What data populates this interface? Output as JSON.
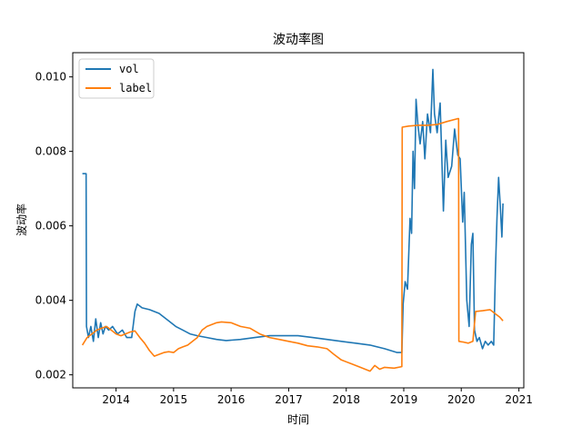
{
  "chart_data": {
    "type": "line",
    "title": "波动率图",
    "xlabel": "时间",
    "ylabel": "波动率",
    "xlim": [
      "2013-04-01",
      "2021-02-01"
    ],
    "ylim": [
      0.00165,
      0.01065
    ],
    "x_ticks": [
      "2014",
      "2015",
      "2016",
      "2017",
      "2018",
      "2019",
      "2020",
      "2021"
    ],
    "x_tick_dates": [
      "2014-01-01",
      "2015-01-01",
      "2016-01-01",
      "2017-01-01",
      "2018-01-01",
      "2019-01-01",
      "2020-01-01",
      "2021-01-01"
    ],
    "y_ticks": [
      "0.002",
      "0.004",
      "0.006",
      "0.008",
      "0.010"
    ],
    "y_tick_values": [
      0.002,
      0.004,
      0.006,
      0.008,
      0.01
    ],
    "grid": false,
    "legend_position": "top-left",
    "series": [
      {
        "name": "vol",
        "color": "#1f77b4",
        "points": [
          [
            "2013-06-01",
            0.0074
          ],
          [
            "2013-06-25",
            0.0074
          ],
          [
            "2013-06-27",
            0.0033
          ],
          [
            "2013-07-10",
            0.003
          ],
          [
            "2013-07-25",
            0.0033
          ],
          [
            "2013-08-10",
            0.0029
          ],
          [
            "2013-08-25",
            0.0035
          ],
          [
            "2013-09-10",
            0.003
          ],
          [
            "2013-09-25",
            0.0034
          ],
          [
            "2013-10-10",
            0.0031
          ],
          [
            "2013-10-25",
            0.0033
          ],
          [
            "2013-11-15",
            0.0032
          ],
          [
            "2013-12-10",
            0.0033
          ],
          [
            "2014-01-10",
            0.0031
          ],
          [
            "2014-02-10",
            0.0032
          ],
          [
            "2014-03-10",
            0.003
          ],
          [
            "2014-04-10",
            0.003
          ],
          [
            "2014-05-01",
            0.0037
          ],
          [
            "2014-05-15",
            0.0039
          ],
          [
            "2014-06-15",
            0.0038
          ],
          [
            "2014-08-01",
            0.00375
          ],
          [
            "2014-10-01",
            0.00365
          ],
          [
            "2014-12-01",
            0.00345
          ],
          [
            "2015-01-15",
            0.0033
          ],
          [
            "2015-03-01",
            0.0032
          ],
          [
            "2015-04-15",
            0.0031
          ],
          [
            "2015-06-01",
            0.00305
          ],
          [
            "2015-08-01",
            0.003
          ],
          [
            "2015-10-01",
            0.00295
          ],
          [
            "2015-12-01",
            0.00292
          ],
          [
            "2016-03-01",
            0.00295
          ],
          [
            "2016-06-01",
            0.003
          ],
          [
            "2016-09-01",
            0.00305
          ],
          [
            "2016-12-01",
            0.00305
          ],
          [
            "2017-03-01",
            0.00305
          ],
          [
            "2017-06-01",
            0.003
          ],
          [
            "2017-09-01",
            0.00295
          ],
          [
            "2017-12-01",
            0.0029
          ],
          [
            "2018-03-01",
            0.00285
          ],
          [
            "2018-06-01",
            0.0028
          ],
          [
            "2018-09-01",
            0.0027
          ],
          [
            "2018-11-20",
            0.0026
          ],
          [
            "2018-12-20",
            0.0026
          ],
          [
            "2018-12-28",
            0.0039
          ],
          [
            "2019-01-10",
            0.0045
          ],
          [
            "2019-01-25",
            0.0043
          ],
          [
            "2019-02-10",
            0.0062
          ],
          [
            "2019-02-20",
            0.0058
          ],
          [
            "2019-03-01",
            0.008
          ],
          [
            "2019-03-10",
            0.007
          ],
          [
            "2019-03-20",
            0.0094
          ],
          [
            "2019-04-01",
            0.0087
          ],
          [
            "2019-04-15",
            0.0082
          ],
          [
            "2019-05-01",
            0.0088
          ],
          [
            "2019-05-15",
            0.0078
          ],
          [
            "2019-06-01",
            0.009
          ],
          [
            "2019-06-20",
            0.0085
          ],
          [
            "2019-07-05",
            0.0102
          ],
          [
            "2019-07-15",
            0.009
          ],
          [
            "2019-08-01",
            0.0085
          ],
          [
            "2019-08-20",
            0.0093
          ],
          [
            "2019-09-10",
            0.0064
          ],
          [
            "2019-09-25",
            0.0083
          ],
          [
            "2019-10-10",
            0.0073
          ],
          [
            "2019-11-01",
            0.0076
          ],
          [
            "2019-11-20",
            0.0086
          ],
          [
            "2019-12-10",
            0.0079
          ],
          [
            "2019-12-25",
            0.0078
          ],
          [
            "2020-01-10",
            0.0061
          ],
          [
            "2020-01-20",
            0.0069
          ],
          [
            "2020-02-05",
            0.004
          ],
          [
            "2020-02-20",
            0.0033
          ],
          [
            "2020-03-05",
            0.0055
          ],
          [
            "2020-03-15",
            0.0058
          ],
          [
            "2020-03-25",
            0.0032
          ],
          [
            "2020-04-10",
            0.0029
          ],
          [
            "2020-04-25",
            0.003
          ],
          [
            "2020-05-15",
            0.0027
          ],
          [
            "2020-06-01",
            0.0029
          ],
          [
            "2020-06-20",
            0.0028
          ],
          [
            "2020-07-10",
            0.0029
          ],
          [
            "2020-07-25",
            0.0028
          ],
          [
            "2020-08-05",
            0.0048
          ],
          [
            "2020-08-15",
            0.0062
          ],
          [
            "2020-08-25",
            0.0073
          ],
          [
            "2020-09-05",
            0.0065
          ],
          [
            "2020-09-15",
            0.0057
          ],
          [
            "2020-09-22",
            0.0066
          ]
        ]
      },
      {
        "name": "label",
        "color": "#ff7f0e",
        "points": [
          [
            "2013-06-01",
            0.0028
          ],
          [
            "2013-07-01",
            0.003
          ],
          [
            "2013-08-01",
            0.0031
          ],
          [
            "2013-09-01",
            0.0032
          ],
          [
            "2013-10-01",
            0.00325
          ],
          [
            "2013-11-01",
            0.0033
          ],
          [
            "2013-12-01",
            0.0032
          ],
          [
            "2014-01-01",
            0.0031
          ],
          [
            "2014-02-01",
            0.00305
          ],
          [
            "2014-03-01",
            0.0031
          ],
          [
            "2014-04-01",
            0.00315
          ],
          [
            "2014-05-01",
            0.00318
          ],
          [
            "2014-06-01",
            0.003
          ],
          [
            "2014-07-01",
            0.00285
          ],
          [
            "2014-08-01",
            0.00265
          ],
          [
            "2014-09-01",
            0.0025
          ],
          [
            "2014-10-01",
            0.00255
          ],
          [
            "2014-11-01",
            0.0026
          ],
          [
            "2014-12-01",
            0.00262
          ],
          [
            "2015-01-01",
            0.0026
          ],
          [
            "2015-02-01",
            0.0027
          ],
          [
            "2015-03-01",
            0.00275
          ],
          [
            "2015-04-01",
            0.0028
          ],
          [
            "2015-05-01",
            0.0029
          ],
          [
            "2015-06-01",
            0.003
          ],
          [
            "2015-07-01",
            0.0032
          ],
          [
            "2015-08-01",
            0.0033
          ],
          [
            "2015-09-01",
            0.00335
          ],
          [
            "2015-10-01",
            0.0034
          ],
          [
            "2015-11-01",
            0.00342
          ],
          [
            "2016-01-01",
            0.0034
          ],
          [
            "2016-03-01",
            0.0033
          ],
          [
            "2016-05-01",
            0.00325
          ],
          [
            "2016-07-01",
            0.0031
          ],
          [
            "2016-09-01",
            0.003
          ],
          [
            "2016-11-01",
            0.00295
          ],
          [
            "2017-01-01",
            0.0029
          ],
          [
            "2017-03-01",
            0.00285
          ],
          [
            "2017-05-01",
            0.00278
          ],
          [
            "2017-07-01",
            0.00275
          ],
          [
            "2017-09-01",
            0.0027
          ],
          [
            "2017-10-15",
            0.00255
          ],
          [
            "2017-12-01",
            0.0024
          ],
          [
            "2018-02-01",
            0.0023
          ],
          [
            "2018-04-01",
            0.0022
          ],
          [
            "2018-06-01",
            0.0021
          ],
          [
            "2018-07-01",
            0.00225
          ],
          [
            "2018-08-01",
            0.00215
          ],
          [
            "2018-09-01",
            0.0022
          ],
          [
            "2018-11-01",
            0.00218
          ],
          [
            "2018-12-20",
            0.00222
          ],
          [
            "2018-12-22",
            0.00865
          ],
          [
            "2019-02-01",
            0.00868
          ],
          [
            "2019-04-01",
            0.0087
          ],
          [
            "2019-06-01",
            0.0087
          ],
          [
            "2019-08-01",
            0.00872
          ],
          [
            "2019-10-01",
            0.0088
          ],
          [
            "2019-12-10",
            0.00888
          ],
          [
            "2019-12-15",
            0.00888
          ],
          [
            "2019-12-17",
            0.0029
          ],
          [
            "2020-01-15",
            0.00288
          ],
          [
            "2020-02-15",
            0.00285
          ],
          [
            "2020-03-15",
            0.0029
          ],
          [
            "2020-04-01",
            0.0037
          ],
          [
            "2020-05-15",
            0.00372
          ],
          [
            "2020-07-01",
            0.00375
          ],
          [
            "2020-08-01",
            0.00365
          ],
          [
            "2020-09-01",
            0.00355
          ],
          [
            "2020-09-22",
            0.00345
          ]
        ]
      }
    ]
  }
}
